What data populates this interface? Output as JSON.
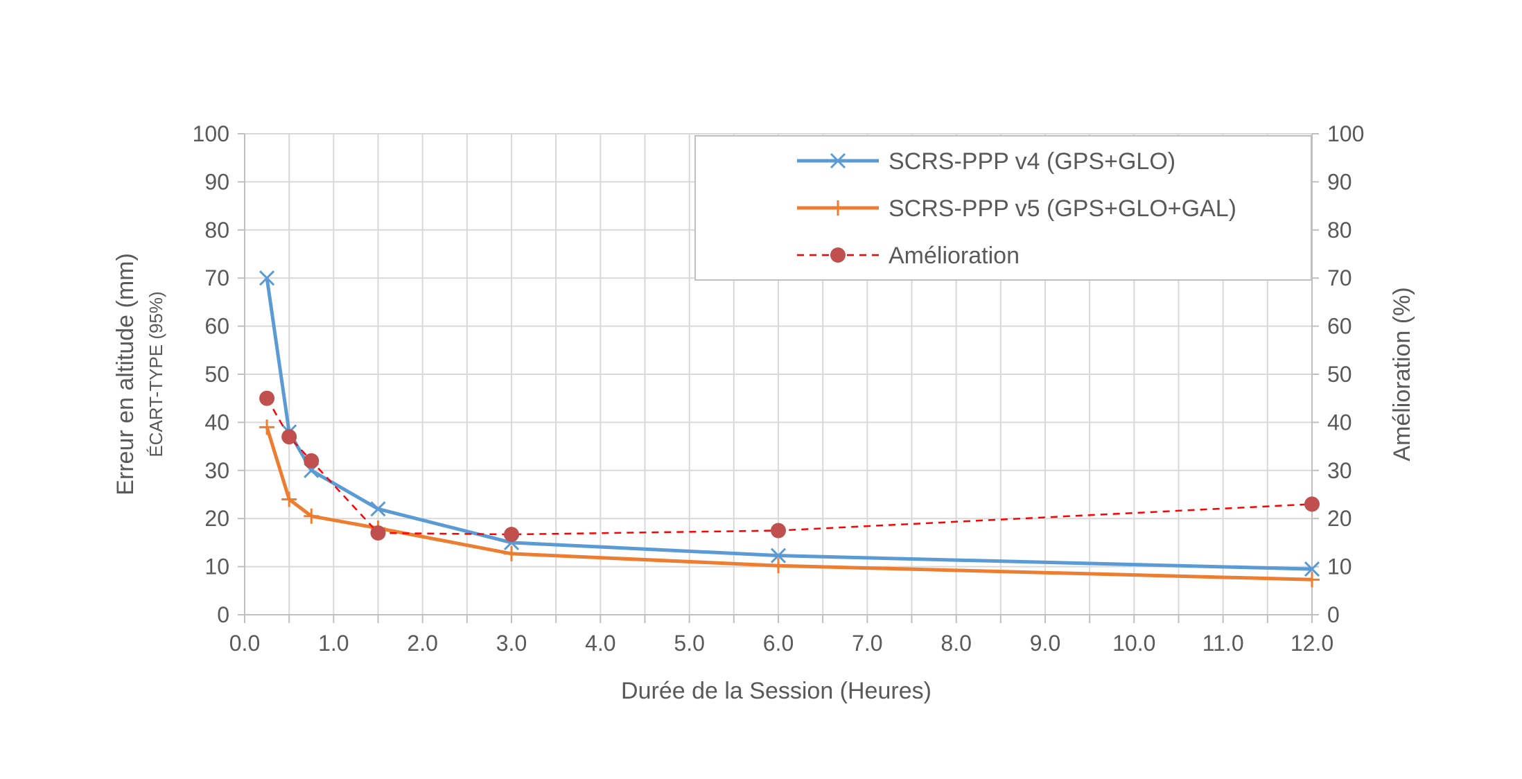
{
  "chart_data": {
    "type": "line",
    "title": "",
    "xlabel": "Durée de la Session (Heures)",
    "ylabel_left": "Erreur en altitude (mm)",
    "ylabel_left_sub": "ÉCART-TYPE (95%)",
    "ylabel_right": "Amélioration (%)",
    "xlim": [
      0,
      12
    ],
    "ylim_left": [
      0,
      100
    ],
    "ylim_right": [
      0,
      100
    ],
    "x_ticks": [
      "0.0",
      "1.0",
      "2.0",
      "3.0",
      "4.0",
      "5.0",
      "6.0",
      "7.0",
      "8.0",
      "9.0",
      "10.0",
      "11.0",
      "12.0"
    ],
    "y_ticks_left": [
      "0",
      "10",
      "20",
      "30",
      "40",
      "50",
      "60",
      "70",
      "80",
      "90",
      "100"
    ],
    "y_ticks_right": [
      "0",
      "10",
      "20",
      "30",
      "40",
      "50",
      "60",
      "70",
      "80",
      "90",
      "100"
    ],
    "grid": true,
    "legend_position": "top-right",
    "x": [
      0.25,
      0.5,
      0.75,
      1.5,
      3.0,
      6.0,
      12.0
    ],
    "series": [
      {
        "name": "SCRS-PPP v4 (GPS+GLO)",
        "axis": "left",
        "marker": "x",
        "line": "solid",
        "color": "#5b9bd5",
        "values": [
          70,
          38,
          30,
          22,
          15,
          12.3,
          9.5
        ]
      },
      {
        "name": "SCRS-PPP v5 (GPS+GLO+GAL)",
        "axis": "left",
        "marker": "+",
        "line": "solid",
        "color": "#ed7d31",
        "values": [
          39,
          24,
          20.5,
          18,
          12.7,
          10.2,
          7.3
        ]
      },
      {
        "name": "Amélioration",
        "axis": "right",
        "marker": "circle",
        "line": "dashed",
        "color": "#ff0000",
        "marker_color": "#c0504d",
        "values": [
          45,
          37,
          32,
          17,
          16.7,
          17.5,
          23
        ]
      }
    ]
  }
}
